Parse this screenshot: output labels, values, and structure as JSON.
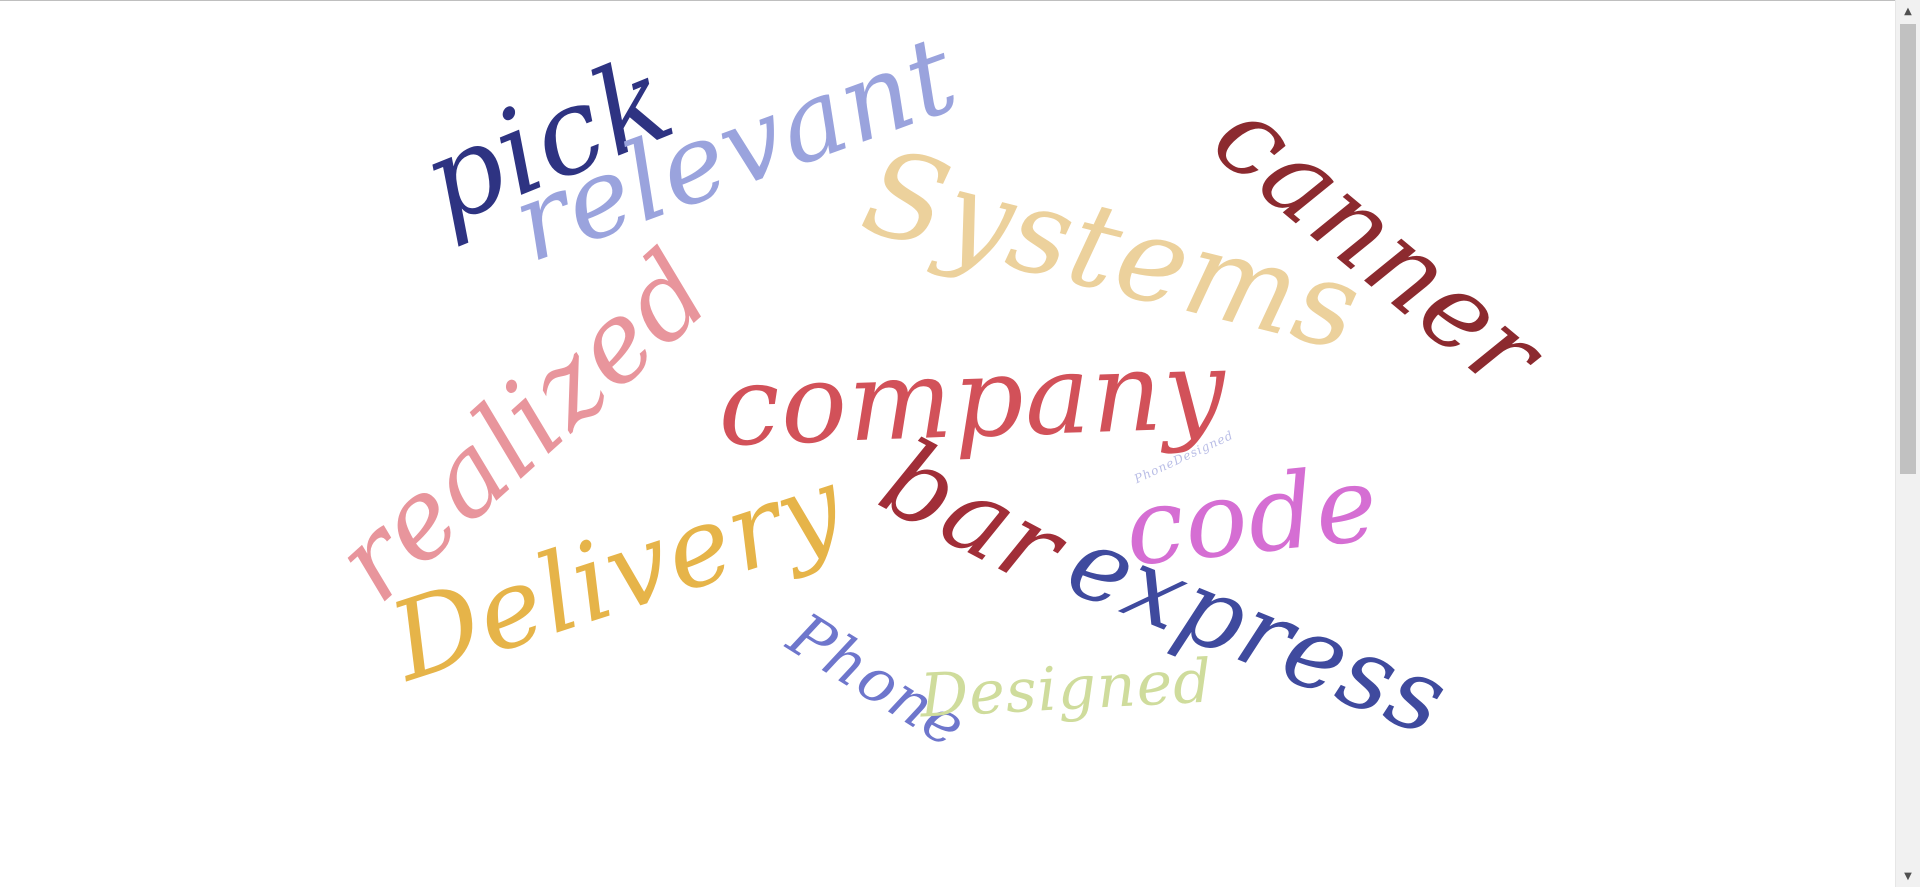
{
  "word_cloud": {
    "words": [
      {
        "text": "pick",
        "color": "#2e3382"
      },
      {
        "text": "relevant",
        "color": "#9aa3dd"
      },
      {
        "text": "Systems",
        "color": "#ecd19c"
      },
      {
        "text": "canner",
        "color": "#8c2a2f"
      },
      {
        "text": "realized",
        "color": "#e8959c"
      },
      {
        "text": "company",
        "color": "#d25159"
      },
      {
        "text": "PhoneDesigned",
        "color": "#b9bde6"
      },
      {
        "text": "code",
        "color": "#d56ed3"
      },
      {
        "text": "bar",
        "color": "#a12e38"
      },
      {
        "text": "Delivery",
        "color": "#e6b449"
      },
      {
        "text": "express",
        "color": "#3f4a9e"
      },
      {
        "text": "Phone",
        "color": "#6e76cc"
      },
      {
        "text": "Designed",
        "color": "#cfdc9c"
      }
    ]
  },
  "scrollbar": {
    "up_icon": "triangle-up-icon",
    "down_icon": "triangle-down-icon",
    "up_glyph": "▲",
    "down_glyph": "▼"
  }
}
